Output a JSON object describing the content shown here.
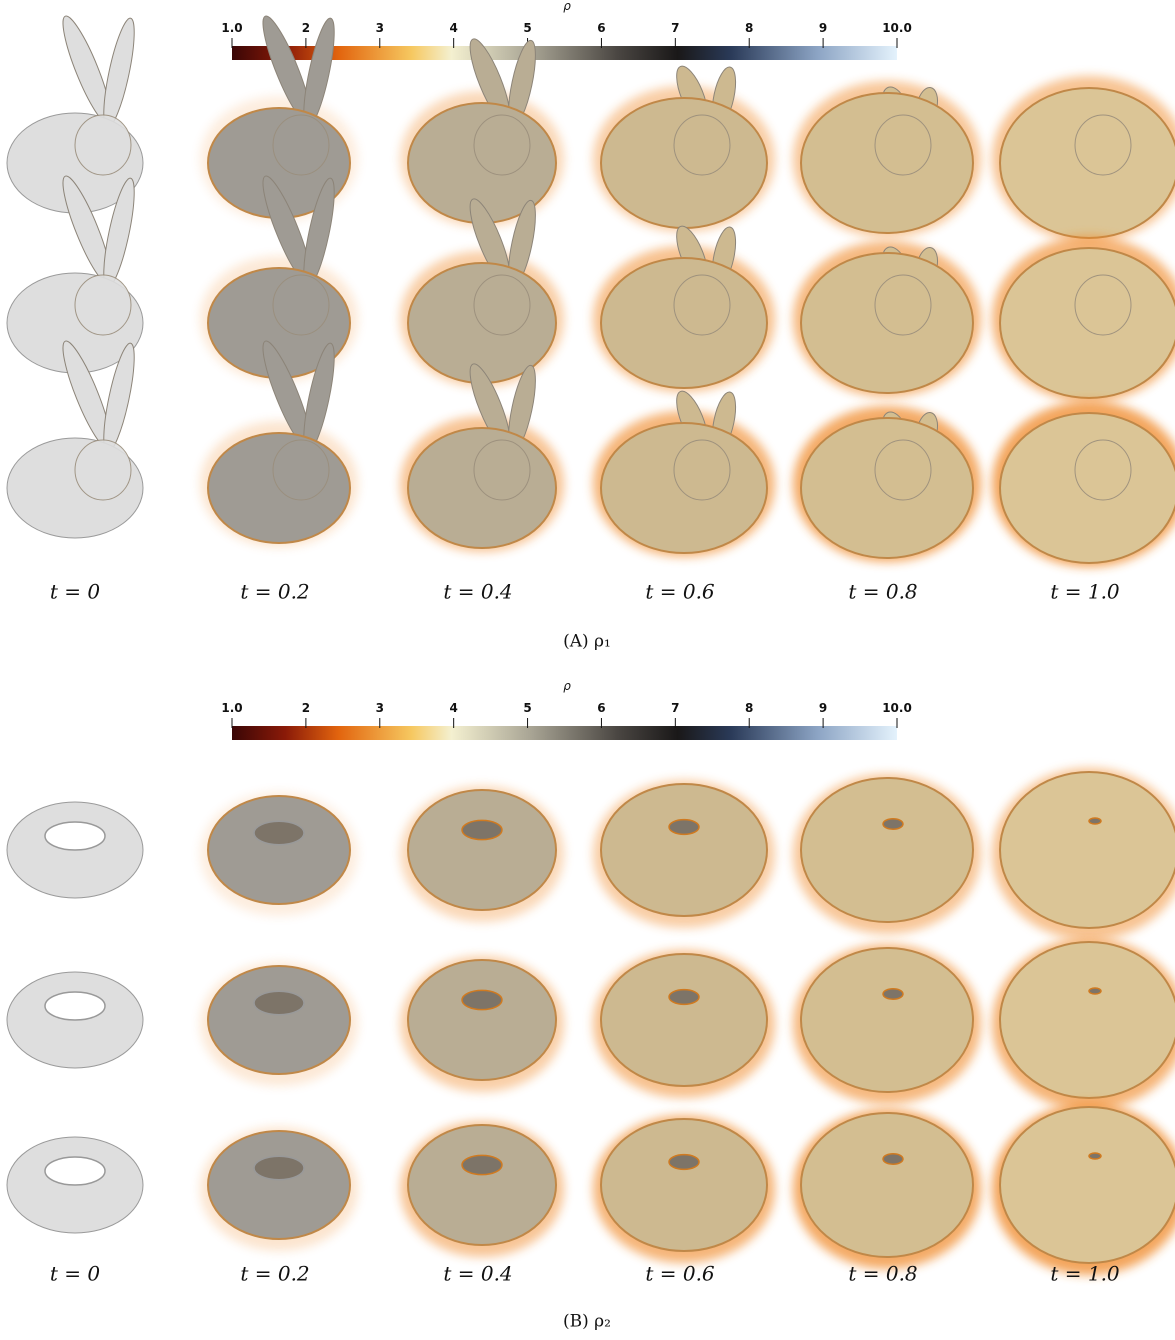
{
  "panels": [
    {
      "colorbar": {
        "label": "ρ",
        "ticks": [
          "1.0",
          "2",
          "3",
          "4",
          "5",
          "6",
          "7",
          "8",
          "9",
          "10.0"
        ]
      },
      "time_labels": [
        "t = 0",
        "t = 0.2",
        "t = 0.4",
        "t = 0.6",
        "t = 0.8",
        "t = 1.0"
      ],
      "caption": "(A) ρ₁"
    },
    {
      "colorbar": {
        "label": "ρ",
        "ticks": [
          "1.0",
          "2",
          "3",
          "4",
          "5",
          "6",
          "7",
          "8",
          "9",
          "10.0"
        ]
      },
      "time_labels": [
        "t = 0",
        "t = 0.2",
        "t = 0.4",
        "t = 0.6",
        "t = 0.8",
        "t = 1.0"
      ],
      "caption": "(B) ρ₂"
    }
  ]
}
